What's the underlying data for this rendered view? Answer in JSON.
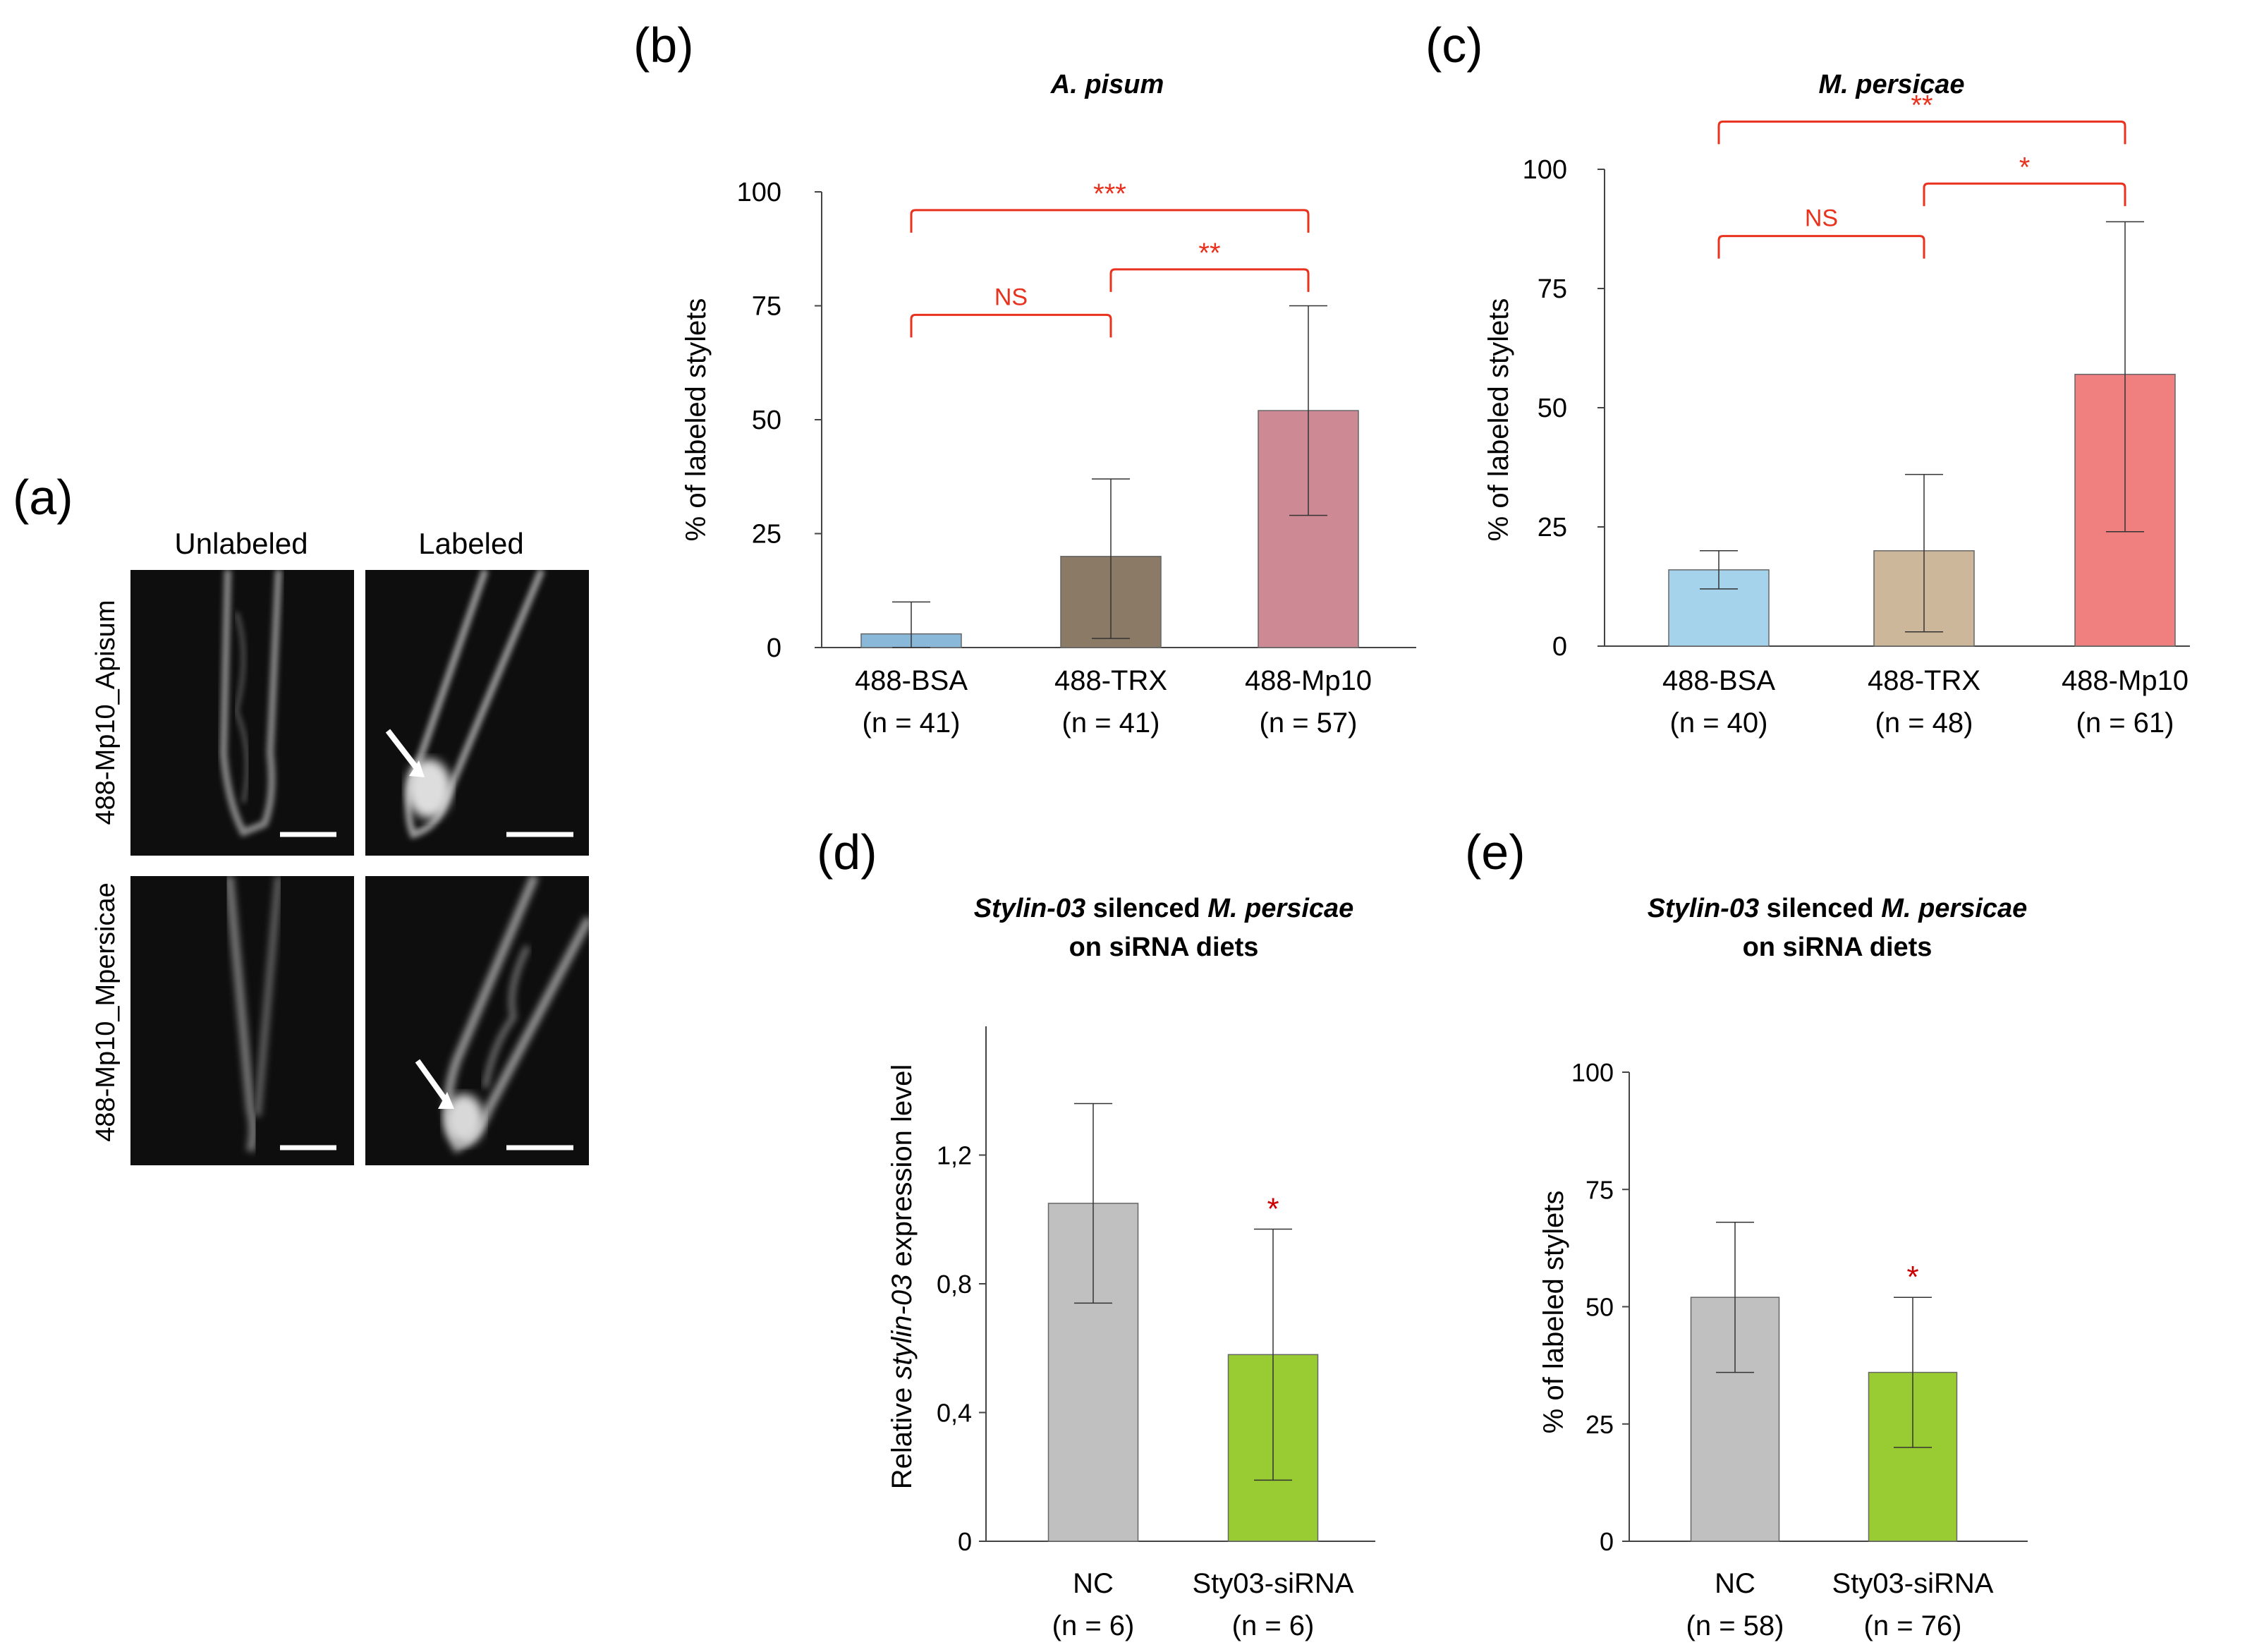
{
  "panel_a": {
    "letter": "(a)",
    "col_labels": [
      "Unlabeled",
      "Labeled"
    ],
    "row_labels": [
      "488-Mp10_Apisum",
      "488-Mp10_Mpersicae"
    ]
  },
  "chart_data": [
    {
      "id": "b",
      "type": "bar",
      "panel_letter": "(b)",
      "title": "A. pisum",
      "ylabel": "% of labeled stylets",
      "ylim": [
        0,
        100
      ],
      "yticks": [
        0,
        25,
        50,
        75,
        100
      ],
      "categories": [
        "488-BSA",
        "488-TRX",
        "488-Mp10"
      ],
      "n_labels": [
        "(n = 41)",
        "(n = 41)",
        "(n = 57)"
      ],
      "values": [
        3,
        20,
        52
      ],
      "err_low": [
        0,
        2,
        29
      ],
      "err_high": [
        10,
        37,
        75
      ],
      "colors": [
        "#8ab8d8",
        "#8b7b66",
        "#cd8a94"
      ],
      "comparisons": [
        {
          "from": 0,
          "to": 1,
          "y": 73,
          "label": "NS"
        },
        {
          "from": 1,
          "to": 2,
          "y": 83,
          "label": "**"
        },
        {
          "from": 0,
          "to": 2,
          "y": 96,
          "label": "***"
        }
      ]
    },
    {
      "id": "c",
      "type": "bar",
      "panel_letter": "(c)",
      "title": "M. persicae",
      "ylabel": "% of labeled stylets",
      "ylim": [
        0,
        100
      ],
      "yticks": [
        0,
        25,
        50,
        75,
        100
      ],
      "categories": [
        "488-BSA",
        "488-TRX",
        "488-Mp10"
      ],
      "n_labels": [
        "(n = 40)",
        "(n = 48)",
        "(n = 61)"
      ],
      "values": [
        16,
        20,
        57
      ],
      "err_low": [
        12,
        3,
        24
      ],
      "err_high": [
        20,
        36,
        89
      ],
      "colors": [
        "#a5d3ec",
        "#cdb79b",
        "#f07f80"
      ],
      "comparisons": [
        {
          "from": 0,
          "to": 1,
          "y": 86,
          "label": "NS"
        },
        {
          "from": 1,
          "to": 2,
          "y": 97,
          "label": "*"
        },
        {
          "from": 0,
          "to": 2,
          "y": 110,
          "label": "**"
        }
      ]
    },
    {
      "id": "d",
      "type": "bar",
      "panel_letter": "(d)",
      "title_lines": [
        [
          {
            "t": "Stylin-03",
            "i": true
          },
          {
            "t": " silenced ",
            "i": false
          },
          {
            "t": "M. persicae",
            "i": true
          }
        ],
        [
          {
            "t": "on siRNA diets",
            "i": false
          }
        ]
      ],
      "ylabel_parts": [
        {
          "t": "Relative ",
          "i": false
        },
        {
          "t": "stylin-03",
          "i": true
        },
        {
          "t": " expression level",
          "i": false
        }
      ],
      "ylim": [
        0,
        1.6
      ],
      "yticks": [
        0,
        0.4,
        0.8,
        1.2
      ],
      "ytick_labels": [
        "0",
        "0,4",
        "0,8",
        "1,2"
      ],
      "categories": [
        "NC",
        "Sty03-siRNA"
      ],
      "n_labels": [
        "(n = 6)",
        "(n = 6)"
      ],
      "values": [
        1.05,
        0.58
      ],
      "err_low": [
        0.74,
        0.19
      ],
      "err_high": [
        1.36,
        0.97
      ],
      "colors": [
        "#c0c0c0",
        "#99cc33"
      ],
      "sig_labels": [
        "",
        "*"
      ]
    },
    {
      "id": "e",
      "type": "bar",
      "panel_letter": "(e)",
      "title_lines": [
        [
          {
            "t": "Stylin-03",
            "i": true
          },
          {
            "t": " silenced ",
            "i": false
          },
          {
            "t": "M. persicae",
            "i": true
          }
        ],
        [
          {
            "t": "on siRNA diets",
            "i": false
          }
        ]
      ],
      "ylabel": "% of labeled  stylets",
      "ylim": [
        0,
        100
      ],
      "yticks": [
        0,
        25,
        50,
        75,
        100
      ],
      "categories": [
        "NC",
        "Sty03-siRNA"
      ],
      "n_labels": [
        "(n = 58)",
        "(n = 76)"
      ],
      "values": [
        52,
        36
      ],
      "err_low": [
        36,
        20
      ],
      "err_high": [
        68,
        52
      ],
      "colors": [
        "#c0c0c0",
        "#99cc33"
      ],
      "sig_labels": [
        "",
        "*"
      ]
    }
  ]
}
